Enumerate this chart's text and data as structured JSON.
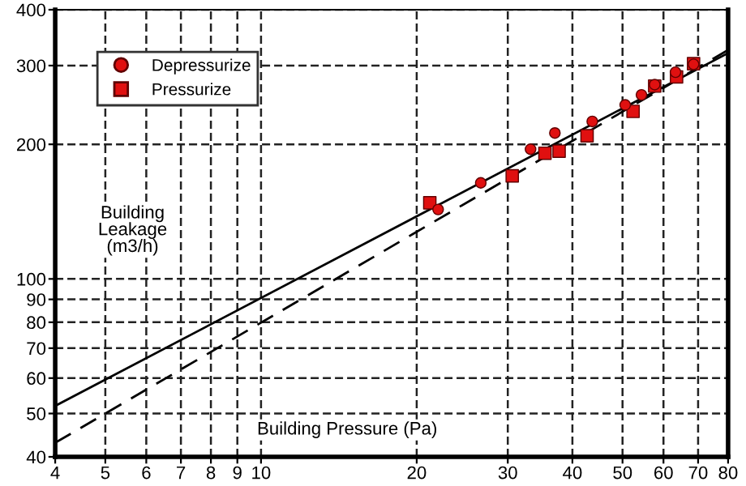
{
  "chart_data": {
    "type": "scatter",
    "xlabel": "Building Pressure (Pa)",
    "ylabel": "Building Leakage (m3/h)",
    "log": "xy",
    "xlim": [
      4,
      80
    ],
    "ylim": [
      40,
      400
    ],
    "xticks": [
      4,
      5,
      6,
      7,
      8,
      9,
      10,
      20,
      30,
      40,
      50,
      60,
      70,
      80
    ],
    "yticks": [
      40,
      50,
      60,
      70,
      80,
      90,
      100,
      200,
      300,
      400
    ],
    "grid": true,
    "legend": "top left",
    "series": [
      {
        "name": "Depressurize",
        "marker": "circle",
        "color": "#e01010",
        "x": [
          22.0,
          26.6,
          33.2,
          37.0,
          43.7,
          50.6,
          54.4,
          57.7,
          63.3,
          68.6
        ],
        "values": [
          143,
          164,
          195,
          212,
          225,
          245,
          258,
          272,
          290,
          302
        ]
      },
      {
        "name": "Pressurize",
        "marker": "square",
        "color": "#e01010",
        "x": [
          21.2,
          30.6,
          35.4,
          37.7,
          42.7,
          52.4,
          57.7,
          63.6,
          68.6
        ],
        "values": [
          148,
          170,
          191,
          193,
          209,
          237,
          270,
          283,
          303
        ]
      },
      {
        "type": "line",
        "line_style": "solid",
        "color": "#000000",
        "x": [
          4,
          80
        ],
        "values": [
          52,
          320
        ]
      },
      {
        "type": "line",
        "line_style": "dashed",
        "color": "#000000",
        "x": [
          4,
          80
        ],
        "values": [
          43,
          325
        ]
      }
    ]
  }
}
